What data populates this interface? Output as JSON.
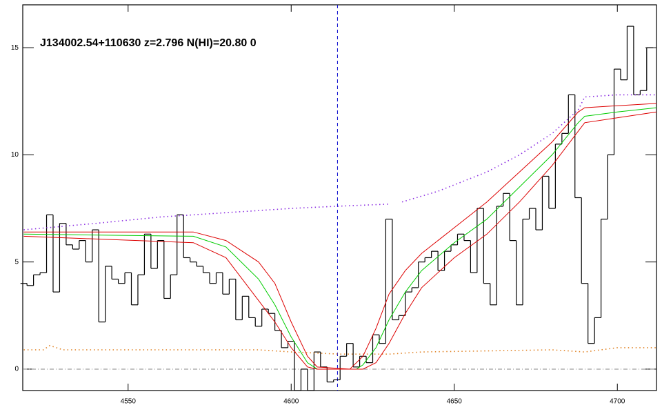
{
  "chart_data": {
    "type": "line",
    "title": "J134002.54+110630 z=2.796 N(HI)=20.80 0",
    "xlim": [
      4517.7,
      4712
    ],
    "ylim": [
      -1,
      17
    ],
    "xticks": [
      4550,
      4600,
      4650,
      4700
    ],
    "yticks": [
      0,
      5,
      10,
      15
    ],
    "vline": 4614.2,
    "hline": 0,
    "series": [
      {
        "color": "#000000",
        "style": "step",
        "x": [
          4518,
          4520,
          4522,
          4524,
          4526,
          4528,
          4530,
          4532,
          4534,
          4536,
          4538,
          4540,
          4542,
          4544,
          4546,
          4548,
          4550,
          4552,
          4554,
          4556,
          4558,
          4560,
          4562,
          4564,
          4566,
          4568,
          4570,
          4572,
          4574,
          4576,
          4578,
          4580,
          4582,
          4584,
          4586,
          4588,
          4590,
          4592,
          4594,
          4596,
          4598,
          4600,
          4602,
          4604,
          4606,
          4608,
          4610,
          4612,
          4614,
          4616,
          4618,
          4620,
          4622,
          4624,
          4626,
          4628,
          4630,
          4632,
          4634,
          4636,
          4638,
          4640,
          4642,
          4644,
          4646,
          4648,
          4650,
          4652,
          4654,
          4656,
          4658,
          4660,
          4662,
          4664,
          4666,
          4668,
          4670,
          4672,
          4674,
          4676,
          4678,
          4680,
          4682,
          4684,
          4686,
          4688,
          4690,
          4692,
          4694,
          4696,
          4698,
          4700,
          4702,
          4704,
          4706,
          4708,
          4710
        ],
        "values": [
          4.0,
          3.9,
          4.4,
          4.5,
          7.2,
          3.6,
          6.8,
          5.8,
          5.6,
          6.0,
          5.0,
          6.5,
          2.2,
          4.8,
          4.2,
          4.0,
          4.5,
          3.0,
          4.4,
          6.3,
          4.7,
          6.0,
          3.3,
          4.4,
          7.2,
          5.2,
          5.0,
          4.8,
          4.5,
          4.0,
          4.5,
          3.5,
          4.2,
          2.3,
          3.4,
          2.4,
          2.0,
          2.8,
          2.6,
          1.8,
          1.0,
          1.3,
          -1.0,
          0.0,
          -1.0,
          0.8,
          0.1,
          -0.6,
          -0.5,
          0.6,
          1.2,
          0.1,
          0.6,
          0.3,
          1.6,
          1.2,
          7.0,
          2.3,
          2.5,
          3.6,
          3.8,
          5.0,
          5.2,
          5.5,
          4.6,
          5.5,
          5.8,
          6.3,
          6.0,
          4.5,
          7.5,
          4.0,
          3.0,
          7.6,
          8.2,
          6.0,
          3.0,
          7.0,
          7.5,
          6.5,
          9.0,
          7.5,
          10.5,
          11.0,
          12.8,
          8.0,
          4.0,
          1.2,
          2.4,
          7.0,
          10.0,
          14.0,
          13.5,
          16.0,
          12.8,
          13.0,
          15.0
        ]
      },
      {
        "color": "#8a2be2",
        "style": "dotted",
        "x": [
          4518,
          4540,
          4560,
          4580,
          4600,
          4614,
          4630,
          4632,
          4634,
          4645,
          4660,
          4670,
          4680,
          4688,
          4690,
          4700,
          4712
        ],
        "values": [
          6.5,
          6.8,
          7.1,
          7.3,
          7.5,
          7.6,
          7.7,
          null,
          7.8,
          8.3,
          9.2,
          10.0,
          11.0,
          12.1,
          12.7,
          12.8,
          12.8
        ]
      },
      {
        "color": "#e08020",
        "style": "dotted",
        "x": [
          4518,
          4524,
          4526,
          4530,
          4560,
          4590,
          4600,
          4615,
          4630,
          4640,
          4680,
          4690,
          4700,
          4712
        ],
        "values": [
          0.9,
          0.9,
          1.1,
          0.9,
          0.9,
          0.9,
          0.8,
          0.7,
          0.7,
          0.8,
          0.9,
          0.8,
          1.0,
          1.0
        ]
      },
      {
        "color": "#00cc00",
        "style": "solid",
        "x": [
          4518,
          4570,
          4580,
          4590,
          4595,
          4600,
          4605,
          4608,
          4620,
          4622,
          4626,
          4630,
          4635,
          4640,
          4650,
          4660,
          4670,
          4680,
          4688,
          4690,
          4700,
          4712
        ],
        "values": [
          6.3,
          6.2,
          5.7,
          4.2,
          3.0,
          1.5,
          0.3,
          0,
          0,
          0.2,
          1.0,
          2.3,
          3.6,
          4.6,
          5.9,
          7.0,
          8.5,
          10.0,
          11.5,
          11.8,
          12.0,
          12.2
        ]
      },
      {
        "color": "#dd0000",
        "style": "solid",
        "x": [
          4518,
          4570,
          4580,
          4590,
          4595,
          4600,
          4605,
          4608,
          4618,
          4622,
          4626,
          4630,
          4635,
          4640,
          4650,
          4660,
          4670,
          4680,
          4688,
          4690,
          4712
        ],
        "values": [
          6.4,
          6.4,
          6.0,
          5.0,
          4.0,
          2.2,
          0.6,
          0.1,
          0,
          0.6,
          1.9,
          3.5,
          4.6,
          5.4,
          6.6,
          7.8,
          9.2,
          10.6,
          12.0,
          12.2,
          12.4
        ]
      },
      {
        "color": "#dd0000",
        "style": "solid",
        "x": [
          4518,
          4570,
          4580,
          4590,
          4595,
          4600,
          4605,
          4608,
          4622,
          4626,
          4630,
          4635,
          4640,
          4650,
          4660,
          4670,
          4680,
          4688,
          4690,
          4712
        ],
        "values": [
          6.2,
          5.9,
          5.2,
          3.2,
          2.2,
          1.0,
          0.1,
          0,
          0,
          0.3,
          1.2,
          2.6,
          3.8,
          5.2,
          6.3,
          7.8,
          9.5,
          11.1,
          11.5,
          12.0
        ]
      }
    ]
  }
}
